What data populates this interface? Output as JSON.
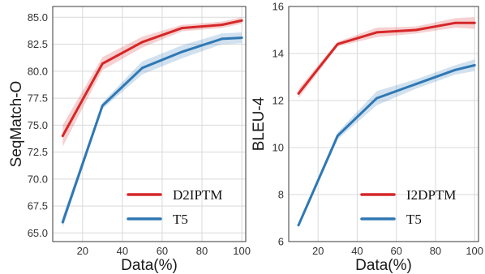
{
  "colors": {
    "red": "#d62728",
    "blue": "#2f78b4",
    "grid": "#d9d9d9",
    "frame": "#3a3a3a"
  },
  "chart_data": [
    {
      "type": "line",
      "title": "",
      "xlabel": "Data(%)",
      "ylabel": "SeqMatch-O",
      "xlim": [
        5,
        102
      ],
      "ylim": [
        64.2,
        86.0
      ],
      "xticks": [
        20,
        40,
        60,
        80,
        100
      ],
      "yticks": [
        65.0,
        67.5,
        70.0,
        72.5,
        75.0,
        77.5,
        80.0,
        82.5,
        85.0
      ],
      "ytick_labels": [
        "65.0",
        "67.5",
        "70.0",
        "72.5",
        "75.0",
        "77.5",
        "80.0",
        "82.5",
        "85.0"
      ],
      "grid": true,
      "legend_position": "bottom-right",
      "series": [
        {
          "name": "D2IPTM",
          "color": "red",
          "x": [
            10,
            30,
            50,
            70,
            90,
            100
          ],
          "y": [
            74.0,
            80.7,
            82.7,
            84.0,
            84.3,
            84.7
          ],
          "band": [
            1.0,
            0.6,
            0.5,
            0.3,
            0.3,
            0.3
          ]
        },
        {
          "name": "T5",
          "color": "blue",
          "x": [
            10,
            30,
            50,
            70,
            90,
            100
          ],
          "y": [
            66.0,
            76.8,
            80.3,
            81.8,
            83.0,
            83.1
          ],
          "band": [
            0.5,
            0.3,
            0.6,
            0.6,
            0.5,
            0.5
          ]
        }
      ]
    },
    {
      "type": "line",
      "title": "",
      "xlabel": "Data(%)",
      "ylabel": "BLEU-4",
      "xlim": [
        5,
        102
      ],
      "ylim": [
        6.0,
        16.0
      ],
      "xticks": [
        20,
        40,
        60,
        80,
        100
      ],
      "yticks": [
        6,
        8,
        10,
        12,
        14,
        16
      ],
      "ytick_labels": [
        "6",
        "8",
        "10",
        "12",
        "14",
        "16"
      ],
      "grid": true,
      "legend_position": "bottom-right",
      "series": [
        {
          "name": "I2DPTM",
          "color": "red",
          "x": [
            10,
            30,
            50,
            70,
            90,
            100
          ],
          "y": [
            12.3,
            14.4,
            14.9,
            15.0,
            15.3,
            15.3
          ],
          "band": [
            0.2,
            0.1,
            0.2,
            0.15,
            0.2,
            0.25
          ]
        },
        {
          "name": "T5",
          "color": "blue",
          "x": [
            10,
            30,
            50,
            70,
            90,
            100
          ],
          "y": [
            6.7,
            10.5,
            12.1,
            12.7,
            13.3,
            13.5
          ],
          "band": [
            0.1,
            0.15,
            0.3,
            0.2,
            0.2,
            0.25
          ]
        }
      ]
    }
  ]
}
